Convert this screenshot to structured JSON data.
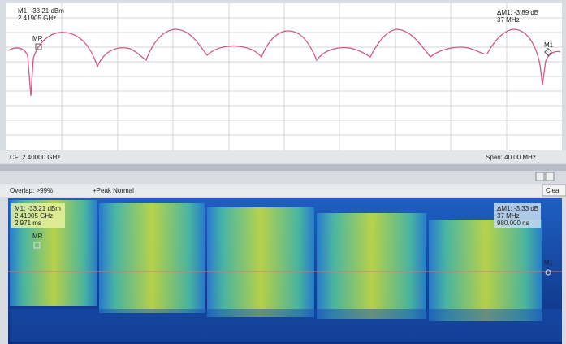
{
  "spectrum_pane": {
    "marker_readout": [
      "M1: -33.21 dBm",
      "2.41905 GHz"
    ],
    "delta_readout": [
      "ΔM1: -3.89 dB",
      "37 MHz"
    ],
    "marker_labels": [
      "MR",
      "M1"
    ],
    "center_frequency": "CF: 2.40000 GHz",
    "span": "Span: 40.00 MHz"
  },
  "toolbar": {
    "overlap": "Overlap: >99%",
    "detector": "+Peak Normal",
    "clear_button": "Clea"
  },
  "spectrogram_pane": {
    "marker_readout": [
      "M1: -33.21 dBm",
      "2.41905 GHz",
      "2.971 ms"
    ],
    "delta_readout": [
      "ΔM1: -3.33 dB",
      "37 MHz",
      "980.000 ns"
    ],
    "marker_labels": [
      "MR",
      "M1"
    ]
  }
}
